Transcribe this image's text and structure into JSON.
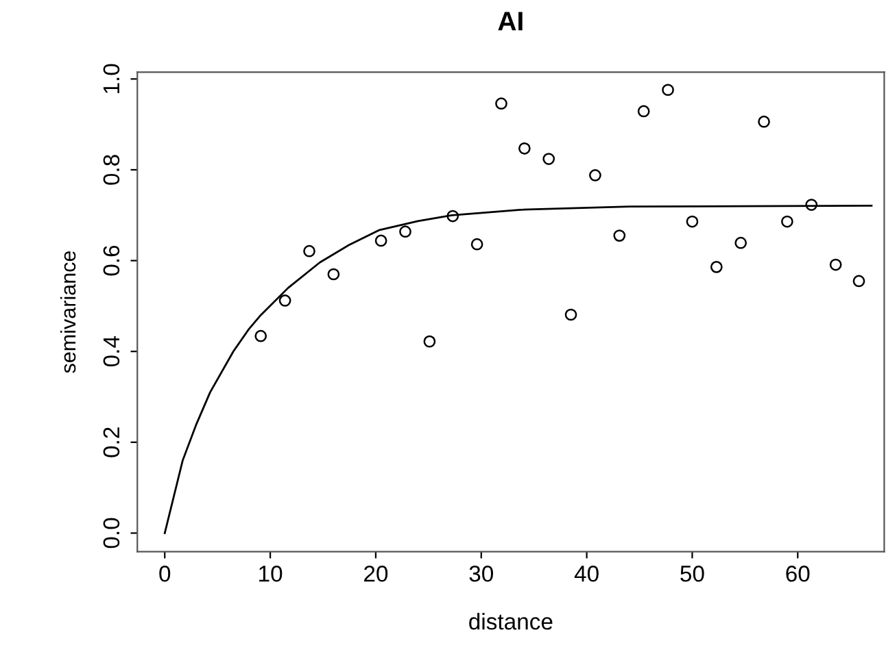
{
  "chart_data": {
    "type": "scatter",
    "title": "AI",
    "xlabel": "distance",
    "ylabel": "semivariance",
    "xlim": [
      -2.6,
      68.2
    ],
    "ylim": [
      -0.041,
      1.015
    ],
    "xticks": [
      0,
      10,
      20,
      30,
      40,
      50,
      60
    ],
    "yticks": [
      {
        "value": 0,
        "label": "0.0"
      },
      {
        "value": 0.2,
        "label": "0.2"
      },
      {
        "value": 0.4,
        "label": "0.4"
      },
      {
        "value": 0.6,
        "label": "0.6"
      },
      {
        "value": 0.8,
        "label": "0.8"
      },
      {
        "value": 1.0,
        "label": "1.0"
      }
    ],
    "grid": false,
    "legend": false,
    "series": [
      {
        "color": "#000000",
        "marker": "circle",
        "x": [
          9.1,
          11.4,
          13.7,
          16.0,
          20.5,
          22.8,
          25.1,
          27.3,
          29.6,
          31.9,
          34.1,
          36.4,
          38.5,
          40.8,
          43.1,
          45.4,
          47.7,
          50.0,
          52.3,
          54.6,
          56.8,
          59.0,
          61.3,
          63.6,
          65.8
        ],
        "values": [
          0.434,
          0.512,
          0.621,
          0.57,
          0.644,
          0.664,
          0.422,
          0.698,
          0.636,
          0.946,
          0.847,
          0.824,
          0.481,
          0.788,
          0.655,
          0.929,
          0.976,
          0.686,
          0.586,
          0.639,
          0.906,
          0.686,
          0.723,
          0.591,
          0.555
        ]
      },
      {
        "type": "line",
        "color": "#000000",
        "line_style": "solid",
        "x": [
          0,
          1.7,
          3.0,
          4.3,
          6.5,
          8.0,
          9.1,
          11.7,
          14.7,
          17.5,
          20.3,
          24.0,
          27.2,
          33.7,
          44.1,
          67.0
        ],
        "values": [
          0,
          0.16,
          0.24,
          0.31,
          0.4,
          0.45,
          0.48,
          0.54,
          0.596,
          0.635,
          0.667,
          0.687,
          0.7,
          0.712,
          0.719,
          0.721
        ]
      }
    ]
  }
}
